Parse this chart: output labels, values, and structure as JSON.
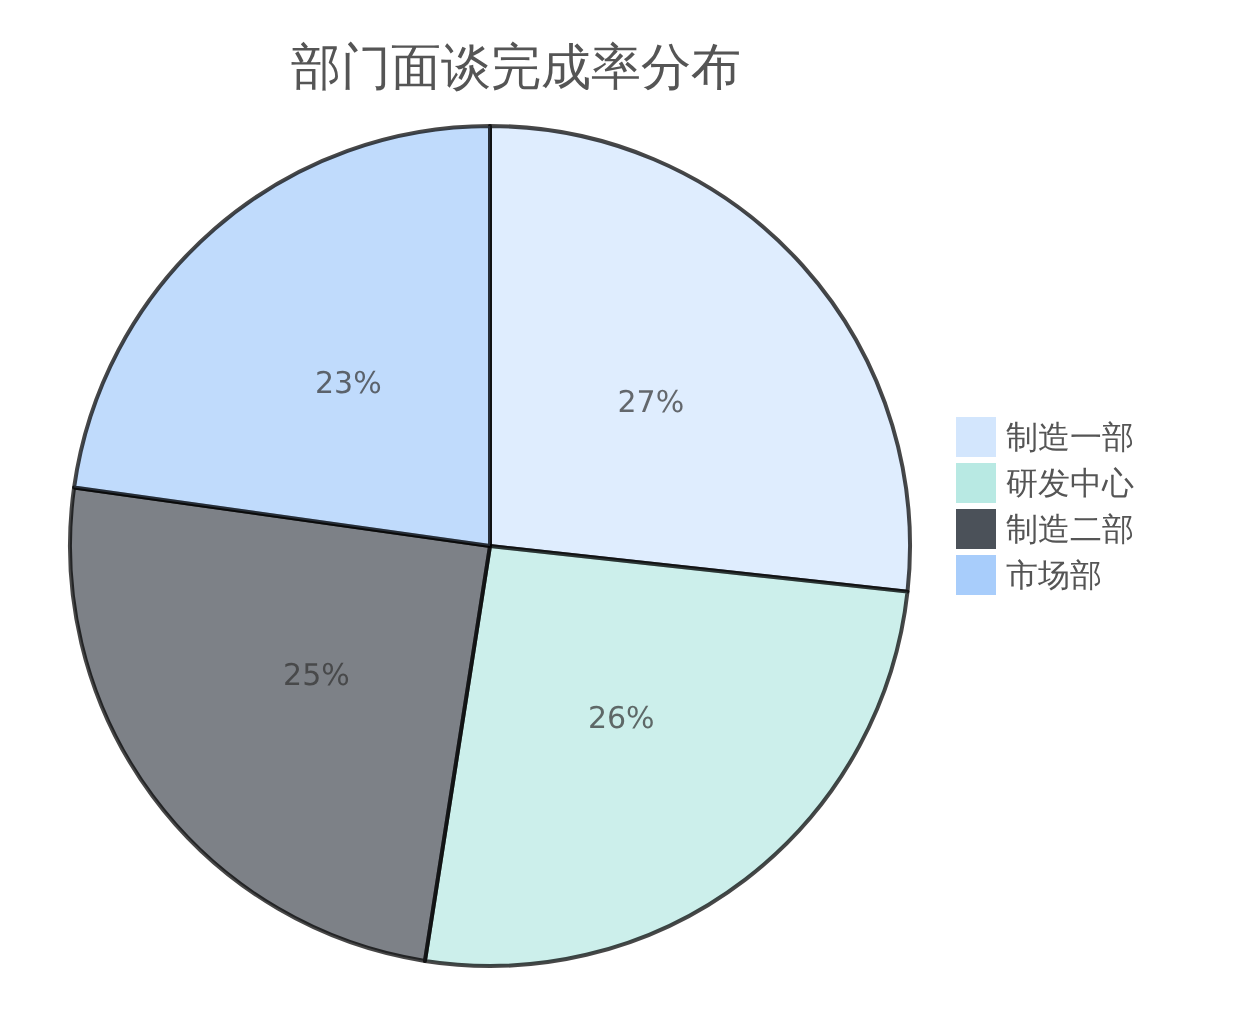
{
  "chart_data": {
    "type": "pie",
    "title": "部门面谈完成率分布",
    "categories": [
      "制造一部",
      "研发中心",
      "制造二部",
      "市场部"
    ],
    "values": [
      27,
      26,
      25,
      23
    ],
    "colors": [
      "#d3e6fd",
      "#b8e9e3",
      "#4b5159",
      "#a8cdfb"
    ],
    "value_labels": [
      "27%",
      "26%",
      "25%",
      "23%"
    ],
    "legend": "right"
  }
}
